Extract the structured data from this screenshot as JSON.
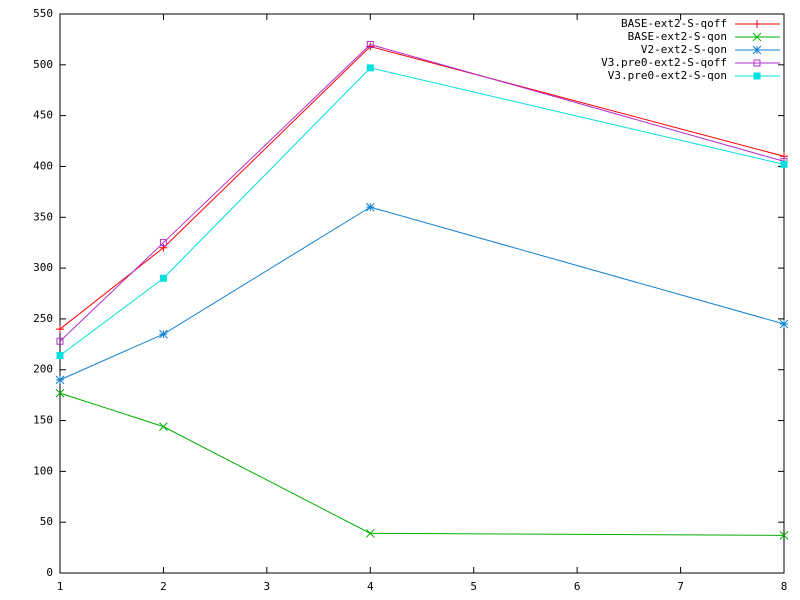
{
  "chart_data": {
    "type": "line",
    "x": [
      1,
      2,
      4,
      8
    ],
    "xlim": [
      1,
      8
    ],
    "xticks": [
      1,
      2,
      3,
      4,
      5,
      6,
      7,
      8
    ],
    "ylim": [
      0,
      550
    ],
    "yticks": [
      0,
      50,
      100,
      150,
      200,
      250,
      300,
      350,
      400,
      450,
      500,
      550
    ],
    "legend": "top-right",
    "series": [
      {
        "name": "BASE-ext2-S-qoff",
        "color": "#ff0000",
        "marker": "plus",
        "values": [
          240,
          320,
          518,
          410
        ]
      },
      {
        "name": "BASE-ext2-S-qon",
        "color": "#00b000",
        "marker": "cross",
        "values": [
          177,
          144,
          39,
          37
        ]
      },
      {
        "name": "V2-ext2-S-qon",
        "color": "#1080d0",
        "marker": "star",
        "values": [
          190,
          235,
          360,
          245
        ]
      },
      {
        "name": "V3.pre0-ext2-S-qoff",
        "color": "#b030d0",
        "marker": "open-square",
        "values": [
          228,
          325,
          520,
          405
        ]
      },
      {
        "name": "V3.pre0-ext2-S-qon",
        "color": "#00e0e0",
        "marker": "filled-square",
        "values": [
          214,
          290,
          497,
          402
        ]
      }
    ]
  }
}
